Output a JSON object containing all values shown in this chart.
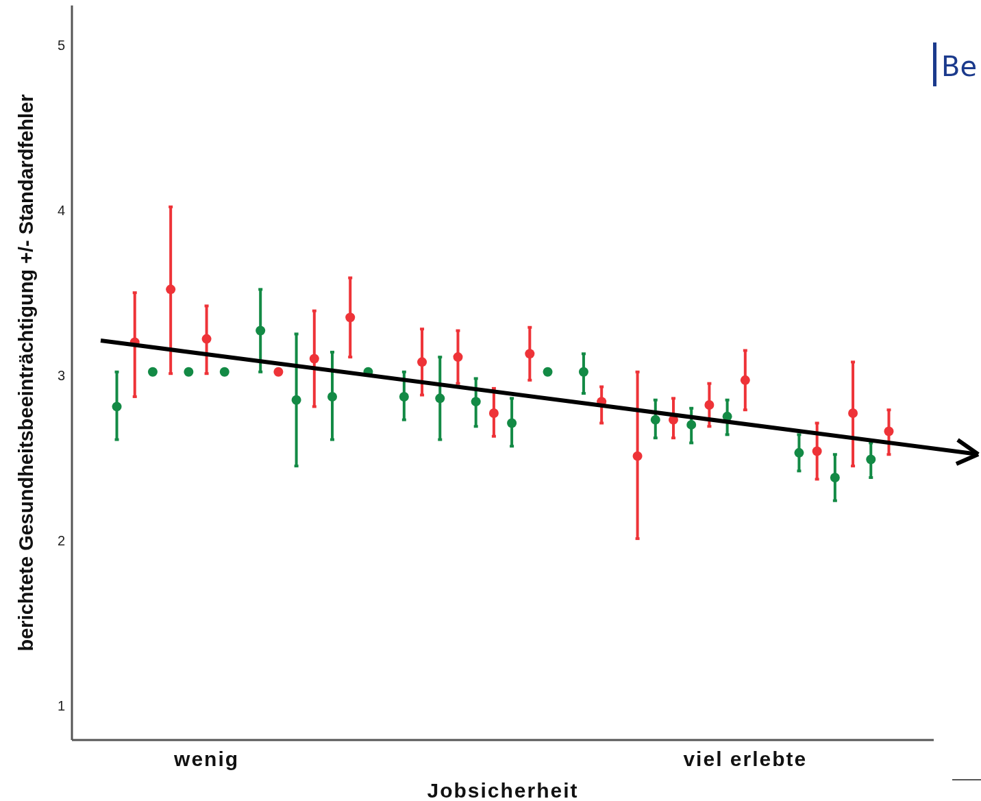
{
  "chart_data": {
    "type": "scatter",
    "xlabel": "Jobsicherheit",
    "ylabel": "berichtete Gesundheitsbeeinträchtigung +/- Standardfehler",
    "marker": "circle",
    "categories": [
      null,
      null,
      null,
      null,
      null,
      null,
      null,
      "wenig",
      null,
      null,
      null,
      null,
      null,
      null,
      null,
      null,
      null,
      null,
      null,
      null,
      null,
      null,
      null,
      null,
      null,
      null,
      null,
      null,
      null,
      null,
      null,
      null,
      null,
      null,
      null,
      null,
      null,
      "viel erlebte",
      null,
      null,
      null,
      null,
      null,
      null,
      null,
      null,
      null,
      null
    ],
    "ylim": [
      0.79,
      5.24
    ],
    "yticks": [
      1,
      2,
      3,
      4,
      5
    ],
    "annotations": [
      "Be"
    ],
    "series": [
      {
        "color": "#138a45",
        "values": [
          null,
          null,
          2.81,
          null,
          3.02,
          null,
          3.02,
          null,
          3.02,
          null,
          3.27,
          null,
          2.85,
          null,
          2.87,
          null,
          3.02,
          null,
          2.87,
          null,
          2.86,
          null,
          2.84,
          null,
          2.71,
          null,
          3.02,
          null,
          3.02,
          null,
          null,
          null,
          2.73,
          null,
          2.7,
          null,
          2.75,
          null,
          null,
          null,
          2.53,
          null,
          2.38,
          null,
          2.49,
          null,
          null,
          null
        ],
        "errors": [
          null,
          null,
          [
            2.61,
            3.02
          ],
          null,
          null,
          null,
          null,
          null,
          null,
          null,
          [
            3.02,
            3.52
          ],
          null,
          [
            2.45,
            3.25
          ],
          null,
          [
            2.61,
            3.14
          ],
          null,
          null,
          null,
          [
            2.73,
            3.02
          ],
          null,
          [
            2.61,
            3.11
          ],
          null,
          [
            2.69,
            2.98
          ],
          null,
          [
            2.57,
            2.86
          ],
          null,
          null,
          null,
          [
            2.89,
            3.13
          ],
          null,
          null,
          null,
          [
            2.62,
            2.85
          ],
          null,
          [
            2.59,
            2.8
          ],
          null,
          [
            2.64,
            2.85
          ],
          null,
          null,
          null,
          [
            2.42,
            2.64
          ],
          null,
          [
            2.24,
            2.52
          ],
          null,
          [
            2.38,
            2.59
          ],
          null,
          null,
          null
        ]
      },
      {
        "color": "#ee3338",
        "values": [
          null,
          null,
          null,
          3.2,
          null,
          3.52,
          null,
          3.22,
          null,
          null,
          null,
          3.02,
          null,
          3.1,
          null,
          3.35,
          null,
          null,
          null,
          3.08,
          null,
          3.11,
          null,
          2.77,
          null,
          3.13,
          null,
          null,
          null,
          2.84,
          null,
          2.51,
          null,
          2.73,
          null,
          2.82,
          null,
          2.97,
          null,
          null,
          null,
          2.54,
          null,
          2.77,
          null,
          2.66,
          null,
          null
        ],
        "errors": [
          null,
          null,
          null,
          [
            2.87,
            3.5
          ],
          null,
          [
            3.01,
            4.02
          ],
          null,
          [
            3.01,
            3.42
          ],
          null,
          null,
          null,
          null,
          null,
          [
            2.81,
            3.39
          ],
          null,
          [
            3.11,
            3.59
          ],
          null,
          null,
          null,
          [
            2.88,
            3.28
          ],
          null,
          [
            2.95,
            3.27
          ],
          null,
          [
            2.63,
            2.92
          ],
          null,
          [
            2.97,
            3.29
          ],
          null,
          null,
          null,
          [
            2.71,
            2.93
          ],
          null,
          [
            2.01,
            3.02
          ],
          null,
          [
            2.62,
            2.86
          ],
          null,
          [
            2.69,
            2.95
          ],
          null,
          [
            2.79,
            3.15
          ],
          null,
          null,
          null,
          [
            2.37,
            2.71
          ],
          null,
          [
            2.45,
            3.08
          ],
          null,
          [
            2.52,
            2.79
          ],
          null,
          null
        ]
      }
    ]
  }
}
